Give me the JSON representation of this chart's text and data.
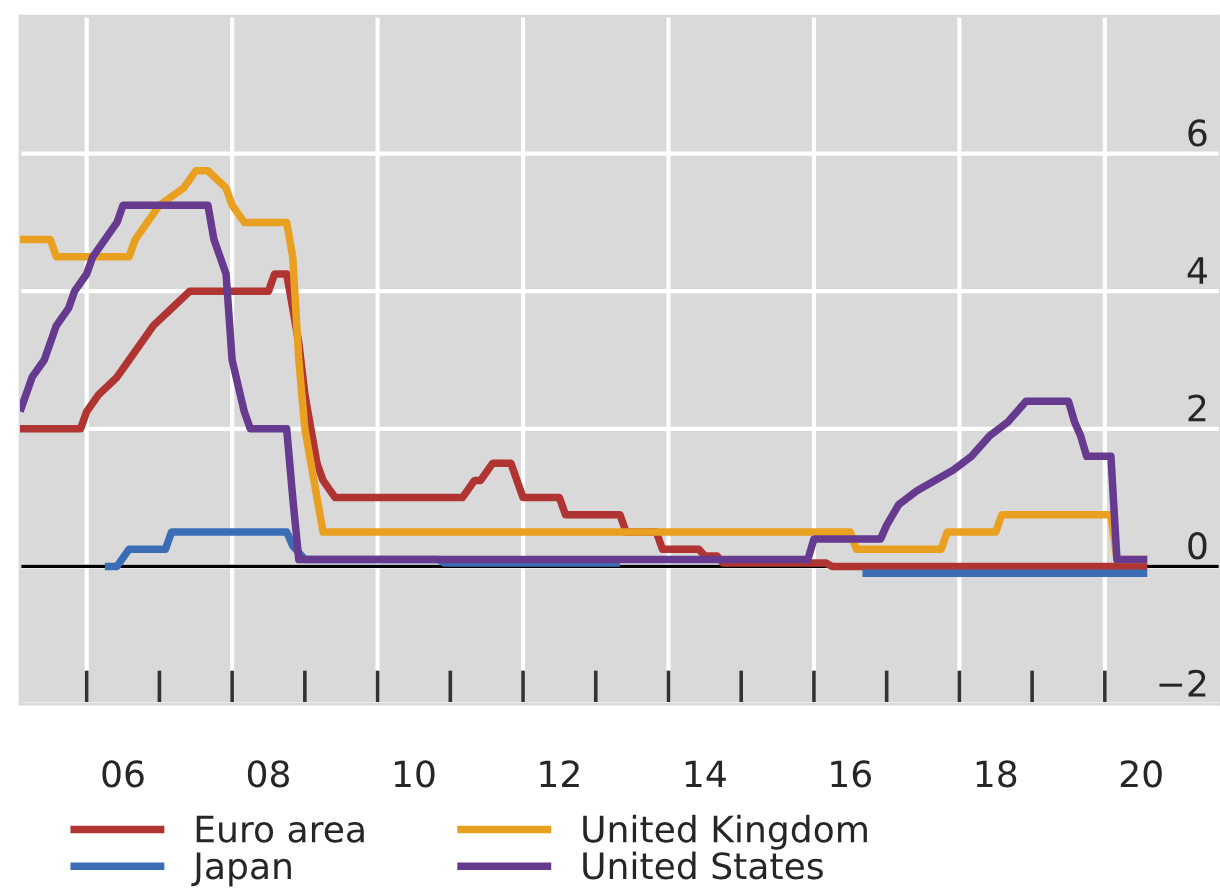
{
  "chart_data": {
    "type": "line",
    "grid": true,
    "legend": "bottom",
    "marker": "none",
    "line_style": "solid",
    "xlim": [
      "2005-02",
      "2021-08"
    ],
    "ylim": [
      -2,
      8
    ],
    "yticks": [
      -2,
      0,
      2,
      4,
      6
    ],
    "xticks": [
      {
        "value": "2006-01",
        "label": null
      },
      {
        "value": "2006-07",
        "label": "06"
      },
      {
        "value": "2008-01",
        "label": null
      },
      {
        "value": "2008-07",
        "label": "08"
      },
      {
        "value": "2010-01",
        "label": null
      },
      {
        "value": "2010-07",
        "label": "10"
      },
      {
        "value": "2012-01",
        "label": null
      },
      {
        "value": "2012-07",
        "label": "12"
      },
      {
        "value": "2014-01",
        "label": null
      },
      {
        "value": "2014-07",
        "label": "14"
      },
      {
        "value": "2016-01",
        "label": null
      },
      {
        "value": "2016-07",
        "label": "16"
      },
      {
        "value": "2018-01",
        "label": null
      },
      {
        "value": "2018-07",
        "label": "18"
      },
      {
        "value": "2020-01",
        "label": null
      },
      {
        "value": "2020-07",
        "label": "20"
      }
    ],
    "ref_lines": [
      {
        "axis": "y",
        "value": 0,
        "color": "#000000"
      }
    ],
    "series": [
      {
        "name": "Euro area",
        "color": "#b03432",
        "x": [
          "2005-02",
          "2005-12",
          "2006-01",
          "2006-03",
          "2006-06",
          "2006-08",
          "2006-10",
          "2006-12",
          "2007-03",
          "2007-06",
          "2008-07",
          "2008-08",
          "2008-10",
          "2008-11",
          "2008-12",
          "2009-01",
          "2009-02",
          "2009-03",
          "2009-04",
          "2009-06",
          "2011-03",
          "2011-05",
          "2011-06",
          "2011-08",
          "2011-11",
          "2011-12",
          "2012-01",
          "2012-07",
          "2012-08",
          "2013-05",
          "2013-06",
          "2013-11",
          "2013-12",
          "2014-06",
          "2014-07",
          "2014-09",
          "2014-10",
          "2016-03",
          "2016-04",
          "2020-08"
        ],
        "values": [
          2.0,
          2.0,
          2.25,
          2.5,
          2.75,
          3.0,
          3.25,
          3.5,
          3.75,
          4.0,
          4.0,
          4.25,
          4.25,
          3.75,
          3.25,
          2.5,
          2.0,
          1.5,
          1.25,
          1.0,
          1.0,
          1.25,
          1.25,
          1.5,
          1.5,
          1.25,
          1.0,
          1.0,
          0.75,
          0.75,
          0.5,
          0.5,
          0.25,
          0.25,
          0.15,
          0.15,
          0.05,
          0.05,
          0.0,
          0.0
        ]
      },
      {
        "name": "Japan",
        "color": "#3a6db5",
        "x": [
          "2006-04",
          "2006-06",
          "2006-08",
          "2007-02",
          "2007-03",
          "2008-10",
          "2008-11",
          "2009-01",
          "2010-11",
          "2010-12",
          "2013-05",
          "2015-01",
          "2016-09",
          "2020-08"
        ],
        "values": [
          0.0,
          0.0,
          0.25,
          0.25,
          0.5,
          0.5,
          0.3,
          0.1,
          0.1,
          0.05,
          0.05,
          null,
          -0.1,
          -0.1
        ]
      },
      {
        "name": "United Kingdom",
        "color": "#e9a020",
        "x": [
          "2005-02",
          "2005-07",
          "2005-08",
          "2006-08",
          "2006-09",
          "2006-11",
          "2007-01",
          "2007-05",
          "2007-07",
          "2007-09",
          "2007-12",
          "2008-01",
          "2008-03",
          "2008-10",
          "2008-11",
          "2008-12",
          "2009-01",
          "2009-02",
          "2009-03",
          "2009-04",
          "2016-07",
          "2016-08",
          "2017-10",
          "2017-11",
          "2018-07",
          "2018-08",
          "2020-02",
          "2020-03",
          "2020-08"
        ],
        "values": [
          4.75,
          4.75,
          4.5,
          4.5,
          4.75,
          5.0,
          5.25,
          5.5,
          5.75,
          5.75,
          5.5,
          5.25,
          5.0,
          5.0,
          4.5,
          3.0,
          2.0,
          1.5,
          1.0,
          0.5,
          0.5,
          0.25,
          0.25,
          0.5,
          0.5,
          0.75,
          0.75,
          0.1,
          0.1
        ]
      },
      {
        "name": "United States",
        "color": "#663a8e",
        "x": [
          "2005-02",
          "2005-03",
          "2005-04",
          "2005-06",
          "2005-07",
          "2005-08",
          "2005-10",
          "2005-11",
          "2006-01",
          "2006-02",
          "2006-04",
          "2006-06",
          "2006-07",
          "2007-09",
          "2007-10",
          "2007-11",
          "2007-12",
          "2008-01",
          "2008-03",
          "2008-04",
          "2008-10",
          "2008-11",
          "2008-12",
          "2015-12",
          "2016-01",
          "2016-12",
          "2017-01",
          "2017-03",
          "2017-06",
          "2017-12",
          "2018-03",
          "2018-06",
          "2018-09",
          "2018-12",
          "2019-07",
          "2019-08",
          "2019-09",
          "2019-10",
          "2020-02",
          "2020-03",
          "2020-08"
        ],
        "values": [
          2.25,
          2.5,
          2.75,
          3.0,
          3.25,
          3.5,
          3.75,
          4.0,
          4.25,
          4.5,
          4.75,
          5.0,
          5.25,
          5.25,
          4.75,
          4.5,
          4.25,
          3.0,
          2.25,
          2.0,
          2.0,
          1.0,
          0.1,
          0.1,
          0.4,
          0.4,
          0.6,
          0.9,
          1.1,
          1.4,
          1.6,
          1.9,
          2.1,
          2.4,
          2.4,
          2.1,
          1.9,
          1.6,
          1.6,
          0.1,
          0.1
        ]
      }
    ]
  }
}
